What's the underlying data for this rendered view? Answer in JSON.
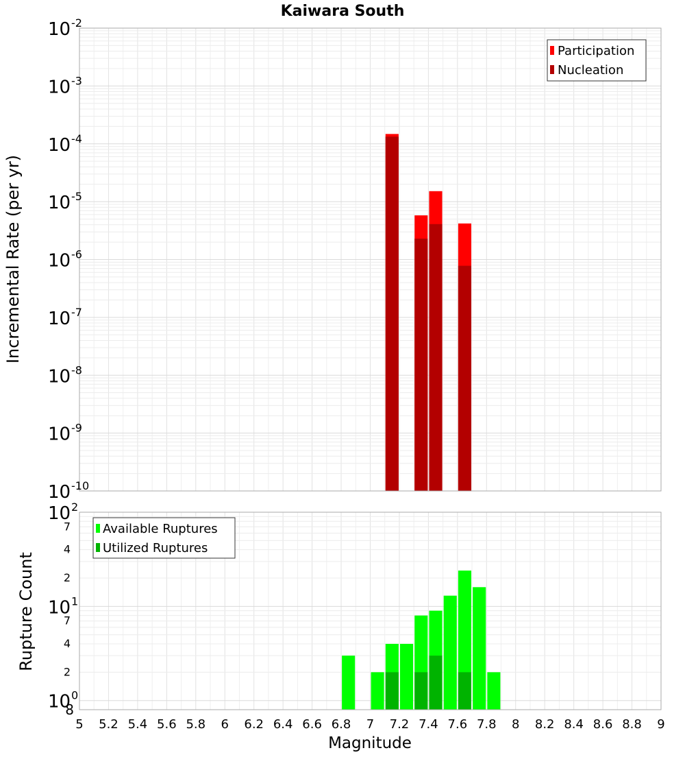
{
  "chart_data": [
    {
      "type": "bar",
      "title": "Kaiwara South",
      "ylabel": "Incremental Rate (per yr)",
      "xlabel": "",
      "yscale": "log",
      "xlim": [
        5,
        9
      ],
      "ylim": [
        1e-10,
        0.01
      ],
      "y_tick_bases": [
        "10",
        "10",
        "10",
        "10",
        "10",
        "10",
        "10",
        "10",
        "10"
      ],
      "y_tick_exponents": [
        "-10",
        "-9",
        "-8",
        "-7",
        "-6",
        "-5",
        "-4",
        "-3",
        "-2"
      ],
      "legend_position": "top-right",
      "grid": true,
      "bar_width": 0.09,
      "series": [
        {
          "name": "Participation",
          "color": "#ff0000",
          "x": [
            7.15,
            7.35,
            7.45,
            7.65
          ],
          "values": [
            0.000148,
            5.8e-06,
            1.52e-05,
            4.2e-06
          ]
        },
        {
          "name": "Nucleation",
          "color": "#b30000",
          "x": [
            7.15,
            7.35,
            7.45,
            7.65
          ],
          "values": [
            0.000133,
            2.3e-06,
            4.1e-06,
            7.8e-07
          ]
        }
      ]
    },
    {
      "type": "bar",
      "title": "",
      "ylabel": "Rupture Count",
      "xlabel": "Magnitude",
      "yscale": "log",
      "xlim": [
        5,
        9
      ],
      "ylim": [
        0.8,
        100
      ],
      "x_ticks": [
        "5",
        "5.2",
        "5.4",
        "5.6",
        "5.8",
        "6",
        "6.2",
        "6.4",
        "6.6",
        "6.8",
        "7",
        "7.2",
        "7.4",
        "7.6",
        "7.8",
        "8",
        "8.2",
        "8.4",
        "8.6",
        "8.8",
        "9"
      ],
      "y_tick_labels": [
        {
          "value": 1,
          "base": "10",
          "exp": "0"
        },
        {
          "value": 2,
          "base": "2",
          "exp": ""
        },
        {
          "value": 4,
          "base": "4",
          "exp": ""
        },
        {
          "value": 7,
          "base": "7",
          "exp": ""
        },
        {
          "value": 10,
          "base": "10",
          "exp": "1"
        },
        {
          "value": 20,
          "base": "2",
          "exp": ""
        },
        {
          "value": 40,
          "base": "4",
          "exp": ""
        },
        {
          "value": 70,
          "base": "7",
          "exp": ""
        },
        {
          "value": 100,
          "base": "10",
          "exp": "2"
        }
      ],
      "y_min_label": "8",
      "legend_position": "top-left",
      "grid": true,
      "bar_width": 0.09,
      "series": [
        {
          "name": "Available Ruptures",
          "color": "#00ff00",
          "x": [
            6.85,
            7.05,
            7.15,
            7.25,
            7.35,
            7.45,
            7.55,
            7.65,
            7.75,
            7.85
          ],
          "values": [
            3,
            2,
            4,
            4,
            8,
            9,
            13,
            24,
            16,
            2
          ]
        },
        {
          "name": "Utilized Ruptures",
          "color": "#00b300",
          "x": [
            7.15,
            7.35,
            7.45,
            7.65
          ],
          "values": [
            2,
            2,
            3,
            2
          ]
        }
      ]
    }
  ]
}
